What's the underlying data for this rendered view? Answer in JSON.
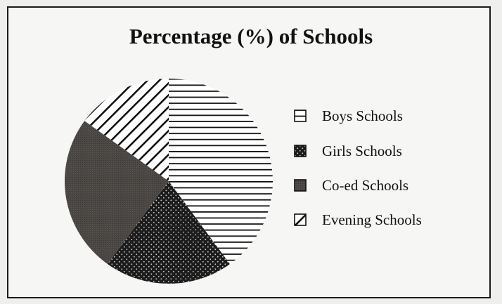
{
  "chart_data": {
    "type": "pie",
    "title": "Percentage (%) of Schools",
    "slices": [
      {
        "label": "Boys Schools",
        "value": 40,
        "pattern": "horizontal-lines",
        "color": "#111111"
      },
      {
        "label": "Girls Schools",
        "value": 20,
        "pattern": "dots",
        "color": "#1c1c1c"
      },
      {
        "label": "Co-ed Schools",
        "value": 25,
        "pattern": "dark-gray",
        "color": "#4a4744"
      },
      {
        "label": "Evening Schools",
        "value": 15,
        "pattern": "diagonal-lines",
        "color": "#111111"
      }
    ],
    "start_angle_deg": 0,
    "direction": "clockwise",
    "legend": "right"
  }
}
